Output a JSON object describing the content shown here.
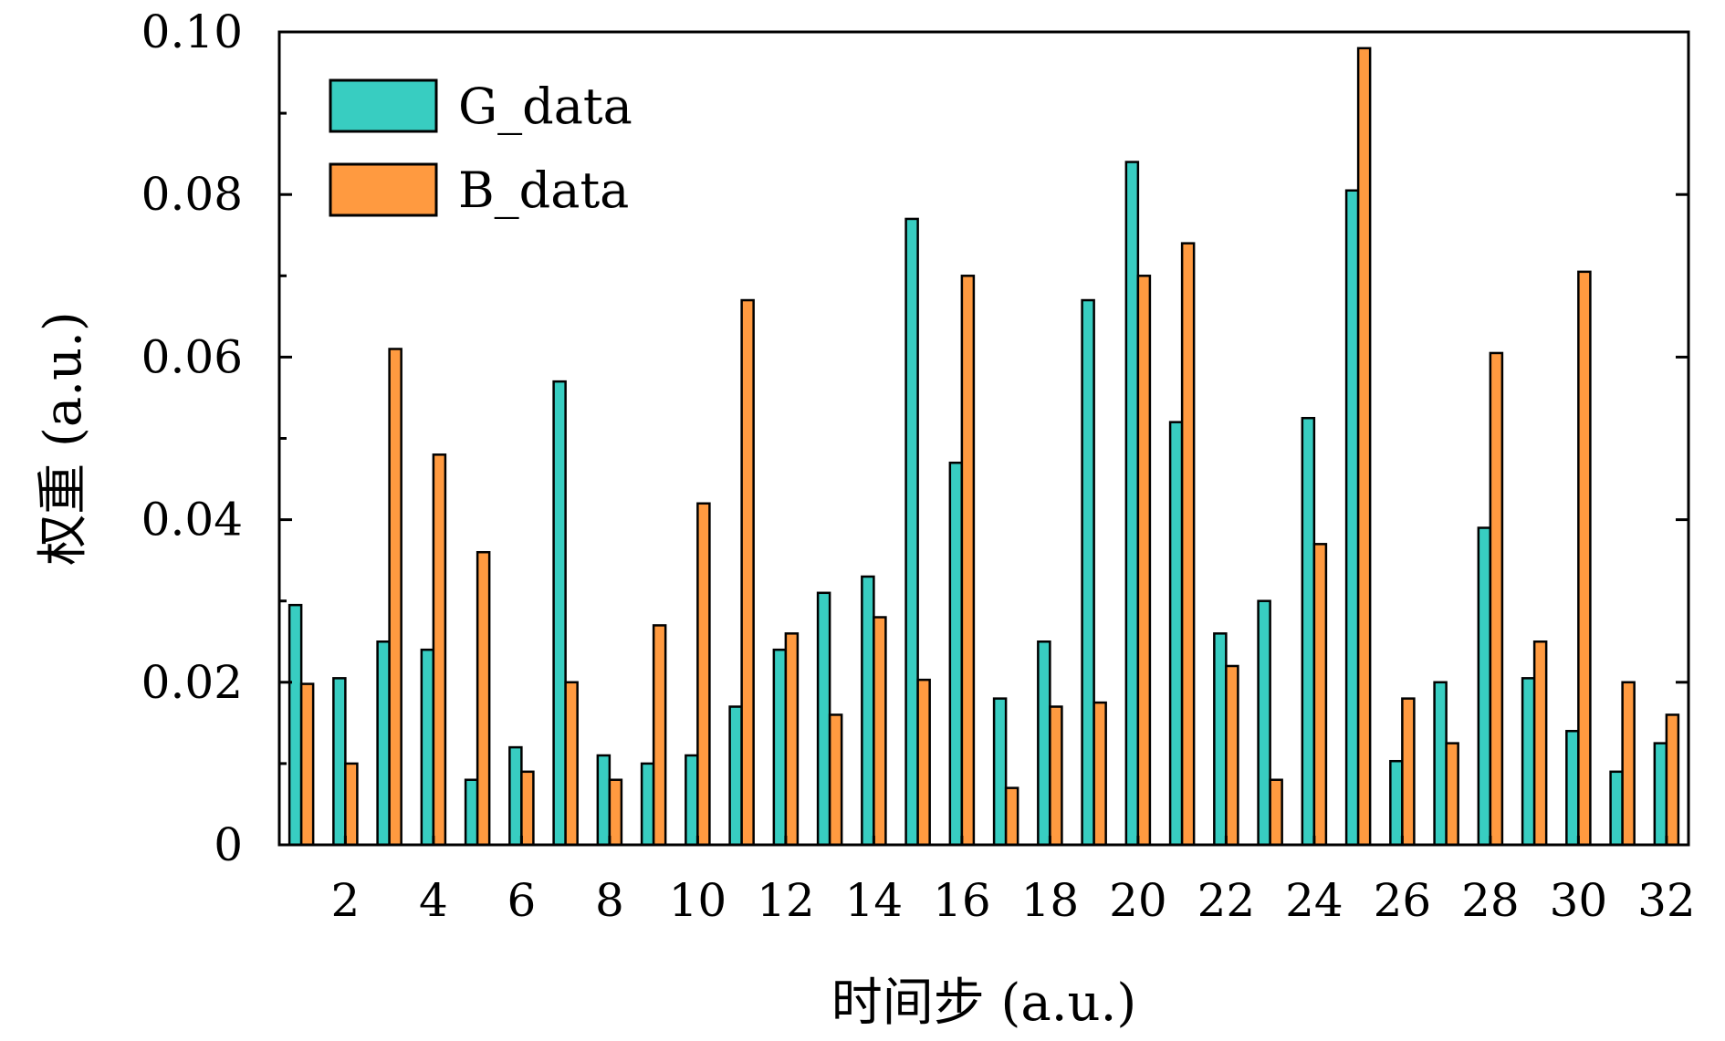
{
  "chart_data": {
    "type": "bar",
    "title": "",
    "xlabel": "时间步 (a.u.)",
    "ylabel": "权重 (a.u.)",
    "ylim": [
      0,
      0.1
    ],
    "xlim": [
      0.5,
      32.5
    ],
    "yticks": [
      "0",
      "0.02",
      "0.04",
      "0.06",
      "0.08",
      "0.10"
    ],
    "xticks": [
      "2",
      "4",
      "6",
      "8",
      "10",
      "12",
      "14",
      "16",
      "18",
      "20",
      "22",
      "24",
      "26",
      "28",
      "30",
      "32"
    ],
    "grid": false,
    "legend_position": "top-left",
    "categories": [
      1,
      2,
      3,
      4,
      5,
      6,
      7,
      8,
      9,
      10,
      11,
      12,
      13,
      14,
      15,
      16,
      17,
      18,
      19,
      20,
      21,
      22,
      23,
      24,
      25,
      26,
      27,
      28,
      29,
      30,
      31,
      32
    ],
    "series": [
      {
        "name": "G_data",
        "color": "#38CDC1",
        "values": [
          0.0295,
          0.0205,
          0.025,
          0.024,
          0.008,
          0.012,
          0.057,
          0.011,
          0.01,
          0.011,
          0.017,
          0.024,
          0.031,
          0.033,
          0.077,
          0.047,
          0.018,
          0.025,
          0.067,
          0.084,
          0.052,
          0.026,
          0.03,
          0.0525,
          0.0805,
          0.0103,
          0.02,
          0.039,
          0.0205,
          0.014,
          0.009,
          0.0125
        ]
      },
      {
        "name": "B_data",
        "color": "#FF9A40",
        "values": [
          0.0198,
          0.01,
          0.061,
          0.048,
          0.036,
          0.009,
          0.02,
          0.008,
          0.027,
          0.042,
          0.067,
          0.026,
          0.016,
          0.028,
          0.0203,
          0.07,
          0.007,
          0.017,
          0.0175,
          0.07,
          0.074,
          0.022,
          0.008,
          0.037,
          0.098,
          0.018,
          0.0125,
          0.0605,
          0.025,
          0.0705,
          0.02,
          0.016
        ]
      }
    ]
  }
}
